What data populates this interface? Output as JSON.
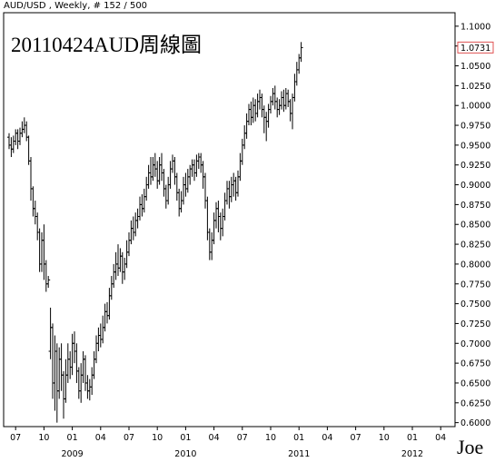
{
  "header": {
    "text": "AUD/USD , Weekly, # 152 / 500"
  },
  "annotations": {
    "title": "20110424AUD周線圖",
    "signature": "Joe"
  },
  "chart_data": {
    "type": "ohlc",
    "symbol": "AUD/USD",
    "period": "Weekly",
    "ylim": [
      0.595,
      1.117
    ],
    "y_ticks": [
      "1.1000",
      "1.0750",
      "1.0500",
      "1.0250",
      "1.0000",
      "0.9750",
      "0.9500",
      "0.9250",
      "0.9000",
      "0.8750",
      "0.8500",
      "0.8250",
      "0.8000",
      "0.7750",
      "0.7500",
      "0.7250",
      "0.7000",
      "0.6750",
      "0.6500",
      "0.6250",
      "0.6000"
    ],
    "last_price": "1.0731",
    "x_ticks": [
      {
        "label": "07",
        "week": 3
      },
      {
        "label": "10",
        "week": 16
      },
      {
        "label": "01",
        "week": 29
      },
      {
        "label": "04",
        "week": 42
      },
      {
        "label": "07",
        "week": 55
      },
      {
        "label": "10",
        "week": 68
      },
      {
        "label": "01",
        "week": 81
      },
      {
        "label": "04",
        "week": 94
      },
      {
        "label": "07",
        "week": 107
      },
      {
        "label": "10",
        "week": 120
      },
      {
        "label": "01",
        "week": 133
      },
      {
        "label": "04",
        "week": 146
      },
      {
        "label": "07",
        "week": 159
      },
      {
        "label": "10",
        "week": 172
      },
      {
        "label": "01",
        "week": 185
      },
      {
        "label": "04",
        "week": 198
      }
    ],
    "year_labels": [
      {
        "label": "2009",
        "week": 29
      },
      {
        "label": "2010",
        "week": 81
      },
      {
        "label": "2011",
        "week": 133
      },
      {
        "label": "2012",
        "week": 185
      }
    ],
    "weeks_total": 199,
    "bars": [
      [
        0.96,
        0.95,
        0.965,
        0.945
      ],
      [
        0.95,
        0.945,
        0.96,
        0.935
      ],
      [
        0.945,
        0.955,
        0.962,
        0.94
      ],
      [
        0.955,
        0.965,
        0.97,
        0.95
      ],
      [
        0.965,
        0.955,
        0.97,
        0.945
      ],
      [
        0.955,
        0.965,
        0.972,
        0.95
      ],
      [
        0.965,
        0.97,
        0.98,
        0.96
      ],
      [
        0.97,
        0.975,
        0.985,
        0.965
      ],
      [
        0.975,
        0.96,
        0.98,
        0.955
      ],
      [
        0.96,
        0.93,
        0.962,
        0.925
      ],
      [
        0.93,
        0.895,
        0.935,
        0.88
      ],
      [
        0.895,
        0.87,
        0.898,
        0.86
      ],
      [
        0.87,
        0.86,
        0.88,
        0.85
      ],
      [
        0.86,
        0.84,
        0.865,
        0.83
      ],
      [
        0.84,
        0.8,
        0.845,
        0.79
      ],
      [
        0.8,
        0.83,
        0.84,
        0.79
      ],
      [
        0.83,
        0.8,
        0.85,
        0.78
      ],
      [
        0.8,
        0.775,
        0.805,
        0.765
      ],
      [
        0.775,
        0.78,
        0.785,
        0.77
      ],
      [
        0.69,
        0.72,
        0.745,
        0.68
      ],
      [
        0.72,
        0.65,
        0.725,
        0.63
      ],
      [
        0.65,
        0.69,
        0.71,
        0.615
      ],
      [
        0.69,
        0.64,
        0.7,
        0.6
      ],
      [
        0.64,
        0.68,
        0.695,
        0.63
      ],
      [
        0.68,
        0.66,
        0.7,
        0.64
      ],
      [
        0.66,
        0.63,
        0.665,
        0.605
      ],
      [
        0.63,
        0.66,
        0.68,
        0.625
      ],
      [
        0.66,
        0.68,
        0.7,
        0.65
      ],
      [
        0.68,
        0.67,
        0.69,
        0.655
      ],
      [
        0.67,
        0.7,
        0.712,
        0.66
      ],
      [
        0.7,
        0.69,
        0.715,
        0.675
      ],
      [
        0.69,
        0.665,
        0.7,
        0.65
      ],
      [
        0.665,
        0.64,
        0.67,
        0.63
      ],
      [
        0.64,
        0.66,
        0.675,
        0.625
      ],
      [
        0.66,
        0.68,
        0.69,
        0.65
      ],
      [
        0.68,
        0.65,
        0.685,
        0.64
      ],
      [
        0.65,
        0.64,
        0.66,
        0.63
      ],
      [
        0.64,
        0.645,
        0.655,
        0.628
      ],
      [
        0.645,
        0.66,
        0.67,
        0.635
      ],
      [
        0.66,
        0.68,
        0.69,
        0.655
      ],
      [
        0.68,
        0.7,
        0.71,
        0.675
      ],
      [
        0.7,
        0.71,
        0.72,
        0.69
      ],
      [
        0.71,
        0.705,
        0.725,
        0.695
      ],
      [
        0.705,
        0.72,
        0.735,
        0.7
      ],
      [
        0.72,
        0.74,
        0.75,
        0.715
      ],
      [
        0.74,
        0.735,
        0.752,
        0.725
      ],
      [
        0.735,
        0.76,
        0.77,
        0.73
      ],
      [
        0.76,
        0.775,
        0.785,
        0.755
      ],
      [
        0.775,
        0.79,
        0.8,
        0.77
      ],
      [
        0.79,
        0.8,
        0.815,
        0.78
      ],
      [
        0.8,
        0.795,
        0.825,
        0.785
      ],
      [
        0.795,
        0.81,
        0.82,
        0.79
      ],
      [
        0.81,
        0.79,
        0.815,
        0.775
      ],
      [
        0.79,
        0.8,
        0.808,
        0.78
      ],
      [
        0.8,
        0.815,
        0.83,
        0.795
      ],
      [
        0.815,
        0.83,
        0.84,
        0.81
      ],
      [
        0.83,
        0.845,
        0.855,
        0.825
      ],
      [
        0.845,
        0.84,
        0.86,
        0.83
      ],
      [
        0.84,
        0.855,
        0.865,
        0.835
      ],
      [
        0.855,
        0.86,
        0.87,
        0.845
      ],
      [
        0.86,
        0.875,
        0.885,
        0.855
      ],
      [
        0.875,
        0.87,
        0.888,
        0.86
      ],
      [
        0.87,
        0.885,
        0.895,
        0.865
      ],
      [
        0.885,
        0.9,
        0.91,
        0.88
      ],
      [
        0.9,
        0.915,
        0.925,
        0.895
      ],
      [
        0.915,
        0.91,
        0.935,
        0.9
      ],
      [
        0.91,
        0.925,
        0.935,
        0.905
      ],
      [
        0.925,
        0.92,
        0.94,
        0.91
      ],
      [
        0.92,
        0.905,
        0.93,
        0.895
      ],
      [
        0.905,
        0.925,
        0.935,
        0.9
      ],
      [
        0.925,
        0.915,
        0.94,
        0.905
      ],
      [
        0.915,
        0.895,
        0.92,
        0.885
      ],
      [
        0.895,
        0.88,
        0.9,
        0.87
      ],
      [
        0.88,
        0.9,
        0.91,
        0.875
      ],
      [
        0.9,
        0.92,
        0.93,
        0.895
      ],
      [
        0.92,
        0.93,
        0.938,
        0.915
      ],
      [
        0.93,
        0.91,
        0.935,
        0.9
      ],
      [
        0.91,
        0.89,
        0.915,
        0.88
      ],
      [
        0.89,
        0.87,
        0.895,
        0.86
      ],
      [
        0.87,
        0.88,
        0.892,
        0.865
      ],
      [
        0.88,
        0.9,
        0.91,
        0.875
      ],
      [
        0.9,
        0.895,
        0.915,
        0.885
      ],
      [
        0.895,
        0.91,
        0.92,
        0.89
      ],
      [
        0.91,
        0.92,
        0.925,
        0.9
      ],
      [
        0.92,
        0.925,
        0.932,
        0.91
      ],
      [
        0.925,
        0.915,
        0.932,
        0.905
      ],
      [
        0.915,
        0.93,
        0.938,
        0.91
      ],
      [
        0.93,
        0.935,
        0.94,
        0.92
      ],
      [
        0.935,
        0.925,
        0.94,
        0.915
      ],
      [
        0.925,
        0.91,
        0.93,
        0.895
      ],
      [
        0.91,
        0.88,
        0.915,
        0.87
      ],
      [
        0.88,
        0.84,
        0.885,
        0.83
      ],
      [
        0.84,
        0.815,
        0.845,
        0.805
      ],
      [
        0.815,
        0.83,
        0.84,
        0.805
      ],
      [
        0.83,
        0.855,
        0.865,
        0.825
      ],
      [
        0.855,
        0.87,
        0.878,
        0.845
      ],
      [
        0.87,
        0.86,
        0.88,
        0.84
      ],
      [
        0.86,
        0.845,
        0.865,
        0.83
      ],
      [
        0.845,
        0.86,
        0.87,
        0.835
      ],
      [
        0.86,
        0.88,
        0.89,
        0.855
      ],
      [
        0.88,
        0.895,
        0.905,
        0.875
      ],
      [
        0.895,
        0.885,
        0.905,
        0.87
      ],
      [
        0.885,
        0.9,
        0.91,
        0.878
      ],
      [
        0.9,
        0.905,
        0.915,
        0.885
      ],
      [
        0.905,
        0.89,
        0.91,
        0.88
      ],
      [
        0.89,
        0.91,
        0.918,
        0.885
      ],
      [
        0.91,
        0.93,
        0.94,
        0.905
      ],
      [
        0.93,
        0.95,
        0.958,
        0.925
      ],
      [
        0.95,
        0.965,
        0.975,
        0.945
      ],
      [
        0.965,
        0.98,
        0.99,
        0.958
      ],
      [
        0.98,
        0.995,
        1.002,
        0.975
      ],
      [
        0.995,
        0.985,
        1.005,
        0.975
      ],
      [
        0.985,
        1.0,
        1.01,
        0.978
      ],
      [
        1.0,
        0.99,
        1.008,
        0.98
      ],
      [
        0.99,
        1.005,
        1.015,
        0.985
      ],
      [
        1.005,
        1.01,
        1.02,
        0.995
      ],
      [
        1.01,
        0.995,
        1.015,
        0.985
      ],
      [
        0.995,
        0.985,
        1.0,
        0.965
      ],
      [
        0.985,
        0.98,
        0.992,
        0.955
      ],
      [
        0.98,
        0.995,
        1.002,
        0.972
      ],
      [
        0.995,
        1.005,
        1.012,
        0.99
      ],
      [
        1.005,
        1.015,
        1.022,
        1.0
      ],
      [
        1.015,
        1.005,
        1.025,
        0.995
      ],
      [
        1.005,
        0.995,
        1.01,
        0.985
      ],
      [
        0.995,
        1.0,
        1.008,
        0.988
      ],
      [
        1.0,
        1.01,
        1.018,
        0.995
      ],
      [
        1.01,
        1.0,
        1.02,
        0.992
      ],
      [
        1.0,
        1.015,
        1.022,
        0.995
      ],
      [
        1.015,
        1.005,
        1.02,
        0.998
      ],
      [
        1.005,
        0.99,
        1.008,
        0.98
      ],
      [
        0.99,
        1.01,
        1.015,
        0.97
      ],
      [
        1.01,
        1.03,
        1.04,
        1.005
      ],
      [
        1.03,
        1.045,
        1.055,
        1.025
      ],
      [
        1.045,
        1.06,
        1.065,
        1.04
      ],
      [
        1.06,
        1.073,
        1.08,
        1.055
      ]
    ]
  }
}
